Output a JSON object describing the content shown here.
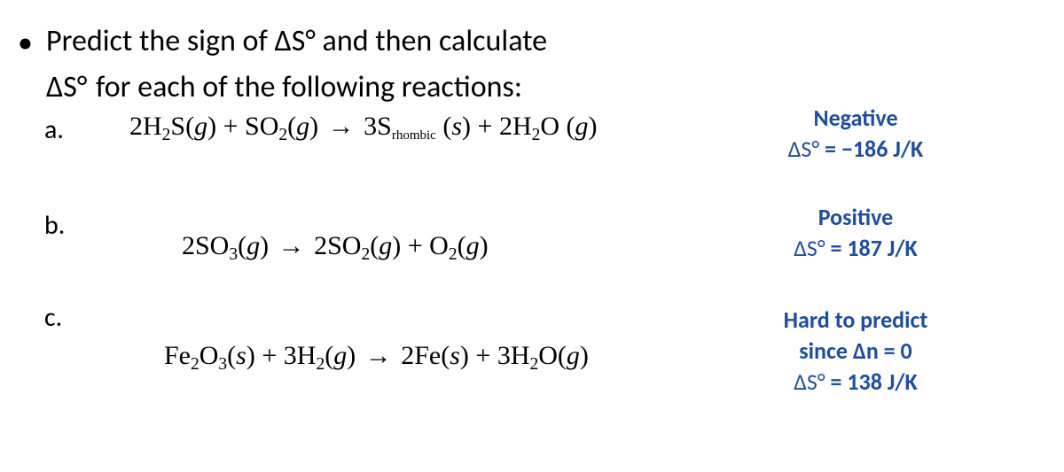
{
  "intro": {
    "line1_pre": "Predict the sign of ",
    "line1_mid": "ΔS°",
    "line1_post": " and then calculate",
    "line2_pre": "ΔS",
    "line2_deg": "°",
    "line2_post": " for each of the following reactions:"
  },
  "parts": {
    "a": {
      "label": "a.",
      "eq": {
        "lhs1_coef": "2H",
        "lhs1_sub": "2",
        "lhs1_tail": "S(",
        "lhs1_phase": "g",
        "lhs1_close": ")",
        "plus1": " + ",
        "lhs2": "SO",
        "lhs2_sub": "2",
        "lhs2_paren": "(",
        "lhs2_phase": "g",
        "lhs2_close": ")",
        "arrow": "→",
        "rhs1": "3S",
        "rhs1_small": "rhombic",
        "rhs1_paren": " (",
        "rhs1_phase": "s",
        "rhs1_close": ")",
        "plus2": " + ",
        "rhs2_coef": "2H",
        "rhs2_sub": "2",
        "rhs2_tail": "O (",
        "rhs2_phase": "g",
        "rhs2_close": ")"
      },
      "answer": {
        "line1": "Negative",
        "line2_pre": "ΔS°",
        "line2_eq": "  = ",
        "line2_val": "−186 J/K"
      }
    },
    "b": {
      "label": "b.",
      "eq": {
        "lhs_coef": "2SO",
        "lhs_sub": "3",
        "lhs_paren": "(",
        "lhs_phase": "g",
        "lhs_close": ")",
        "arrow": "→",
        "rhs1_coef": "2SO",
        "rhs1_sub": "2",
        "rhs1_paren": "(",
        "rhs1_phase": "g",
        "rhs1_close": ")",
        "plus": " + ",
        "rhs2": "O",
        "rhs2_sub": "2",
        "rhs2_paren": "(",
        "rhs2_phase": "g",
        "rhs2_close": ")"
      },
      "answer": {
        "line1": "Positive",
        "line2_pre": "ΔS°",
        "line2_eq": "  = ",
        "line2_val": "187 J/K"
      }
    },
    "c": {
      "label": "c.",
      "eq": {
        "lhs1": "Fe",
        "lhs1_sub1": "2",
        "lhs1_mid": "O",
        "lhs1_sub2": "3",
        "lhs1_paren": "(",
        "lhs1_phase": "s",
        "lhs1_close": ")",
        "plus1": " + ",
        "lhs2_coef": "3H",
        "lhs2_sub": "2",
        "lhs2_paren": "(",
        "lhs2_phase": "g",
        "lhs2_close": ")",
        "arrow": "→",
        "rhs1": "2Fe(",
        "rhs1_phase": "s",
        "rhs1_close": ")",
        "plus2": " +",
        "rhs2_coef": "3H",
        "rhs2_sub": "2",
        "rhs2_tail": "O(",
        "rhs2_phase": "g",
        "rhs2_close": ")"
      },
      "answer": {
        "line1": "Hard to predict",
        "line2": "since Δn = 0",
        "line3_pre": "ΔS°",
        "line3_eq": "  = ",
        "line3_val": "138 J/K"
      }
    }
  },
  "colors": {
    "answer": "#1f4e9c",
    "text": "#000000",
    "background": "#ffffff"
  },
  "typography": {
    "body_font": "Calibri",
    "math_font": "Times New Roman",
    "intro_size_pt": 26,
    "eq_size_pt": 22,
    "ans_size_pt": 20
  }
}
